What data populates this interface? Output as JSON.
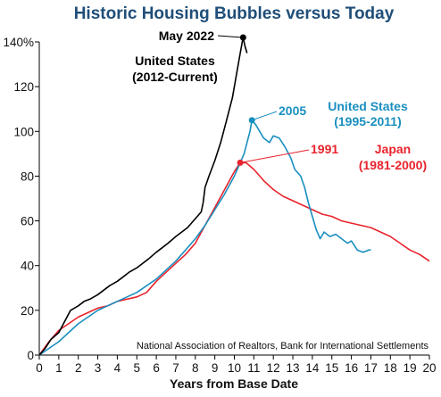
{
  "chart_data": {
    "type": "line",
    "title": "Historic Housing Bubbles versus Today",
    "xlabel": "Years from Base Date",
    "ylabel": "",
    "xlim": [
      0,
      20
    ],
    "ylim": [
      0,
      140
    ],
    "x_ticks": [
      "0",
      "1",
      "2",
      "3",
      "4",
      "5",
      "6",
      "7",
      "8",
      "9",
      "10",
      "11",
      "12",
      "13",
      "14",
      "15",
      "16",
      "17",
      "18",
      "19",
      "20"
    ],
    "y_ticks": [
      "0",
      "20",
      "40",
      "60",
      "80",
      "100",
      "120",
      "140%"
    ],
    "source": "National Association of Realtors, Bank for International Settlements",
    "series": [
      {
        "name": "United States (2012-Current)",
        "color": "#000000",
        "points": [
          [
            0,
            0
          ],
          [
            0.3,
            3
          ],
          [
            0.6,
            7
          ],
          [
            1,
            10
          ],
          [
            1.3,
            15
          ],
          [
            1.6,
            20
          ],
          [
            2,
            22
          ],
          [
            2.3,
            24
          ],
          [
            2.6,
            25
          ],
          [
            3,
            27
          ],
          [
            3.3,
            29
          ],
          [
            3.6,
            31
          ],
          [
            4,
            33
          ],
          [
            4.3,
            35
          ],
          [
            4.6,
            37
          ],
          [
            5,
            39
          ],
          [
            5.3,
            41
          ],
          [
            5.6,
            43
          ],
          [
            6,
            46
          ],
          [
            6.3,
            48
          ],
          [
            6.6,
            50
          ],
          [
            7,
            53
          ],
          [
            7.3,
            55
          ],
          [
            7.6,
            57
          ],
          [
            7.9,
            60
          ],
          [
            8.1,
            62
          ],
          [
            8.3,
            64
          ],
          [
            8.4,
            68
          ],
          [
            8.5,
            75
          ],
          [
            8.7,
            80
          ],
          [
            9,
            87
          ],
          [
            9.3,
            95
          ],
          [
            9.6,
            105
          ],
          [
            9.9,
            115
          ],
          [
            10.1,
            125
          ],
          [
            10.3,
            135
          ],
          [
            10.45,
            142
          ],
          [
            10.55,
            138
          ],
          [
            10.65,
            135
          ]
        ]
      },
      {
        "name": "United States (1995-2011)",
        "color": "#1a8fbf",
        "points": [
          [
            0,
            0
          ],
          [
            0.5,
            3
          ],
          [
            1,
            6
          ],
          [
            1.5,
            10
          ],
          [
            2,
            14
          ],
          [
            2.5,
            17
          ],
          [
            3,
            20
          ],
          [
            3.5,
            22
          ],
          [
            4,
            24
          ],
          [
            4.5,
            26
          ],
          [
            5,
            28
          ],
          [
            5.5,
            31
          ],
          [
            6,
            34
          ],
          [
            6.5,
            38
          ],
          [
            7,
            42
          ],
          [
            7.5,
            47
          ],
          [
            8,
            52
          ],
          [
            8.5,
            58
          ],
          [
            9,
            65
          ],
          [
            9.5,
            72
          ],
          [
            10,
            80
          ],
          [
            10.5,
            90
          ],
          [
            10.8,
            100
          ],
          [
            10.9,
            105
          ],
          [
            11.1,
            103
          ],
          [
            11.3,
            100
          ],
          [
            11.5,
            97
          ],
          [
            11.8,
            95
          ],
          [
            12,
            98
          ],
          [
            12.3,
            97
          ],
          [
            12.6,
            93
          ],
          [
            12.9,
            88
          ],
          [
            13.1,
            83
          ],
          [
            13.4,
            80
          ],
          [
            13.6,
            75
          ],
          [
            13.8,
            68
          ],
          [
            14,
            62
          ],
          [
            14.2,
            56
          ],
          [
            14.4,
            52
          ],
          [
            14.6,
            55
          ],
          [
            14.9,
            53
          ],
          [
            15.2,
            54
          ],
          [
            15.5,
            52
          ],
          [
            15.8,
            50
          ],
          [
            16,
            51
          ],
          [
            16.3,
            47
          ],
          [
            16.6,
            46
          ],
          [
            16.9,
            47
          ],
          [
            17,
            47
          ]
        ]
      },
      {
        "name": "Japan (1981-2000)",
        "color": "#e8232c",
        "points": [
          [
            0,
            0
          ],
          [
            0.5,
            6
          ],
          [
            1,
            11
          ],
          [
            1.5,
            14
          ],
          [
            2,
            17
          ],
          [
            2.5,
            19
          ],
          [
            3,
            21
          ],
          [
            3.5,
            22
          ],
          [
            4,
            24
          ],
          [
            4.5,
            25
          ],
          [
            5,
            26
          ],
          [
            5.5,
            28
          ],
          [
            6,
            33
          ],
          [
            6.5,
            37
          ],
          [
            7,
            41
          ],
          [
            7.5,
            45
          ],
          [
            8,
            50
          ],
          [
            8.5,
            58
          ],
          [
            9,
            66
          ],
          [
            9.5,
            74
          ],
          [
            10,
            82
          ],
          [
            10.3,
            86
          ],
          [
            10.6,
            86
          ],
          [
            11,
            83
          ],
          [
            11.5,
            78
          ],
          [
            12,
            74
          ],
          [
            12.5,
            71
          ],
          [
            13,
            69
          ],
          [
            13.5,
            67
          ],
          [
            14,
            65
          ],
          [
            14.5,
            63
          ],
          [
            15,
            62
          ],
          [
            15.5,
            60
          ],
          [
            16,
            59
          ],
          [
            16.5,
            58
          ],
          [
            17,
            57
          ],
          [
            17.5,
            55
          ],
          [
            18,
            53
          ],
          [
            18.5,
            50
          ],
          [
            19,
            47
          ],
          [
            19.5,
            45
          ],
          [
            20,
            42
          ]
        ]
      }
    ],
    "annotations": [
      {
        "label": "May 2022",
        "x": 10.45,
        "y": 142,
        "color": "#000000"
      },
      {
        "label": "2005",
        "x": 10.9,
        "y": 105,
        "color": "#1a8fbf"
      },
      {
        "label": "1991",
        "x": 10.3,
        "y": 86,
        "color": "#e8232c"
      }
    ],
    "series_labels": [
      {
        "lines": [
          "United States",
          "(2012-Current)"
        ],
        "color": "#000000"
      },
      {
        "lines": [
          "United States",
          "(1995-2011)"
        ],
        "color": "#1a8fbf"
      },
      {
        "lines": [
          "Japan",
          "(1981-2000)"
        ],
        "color": "#e8232c"
      }
    ]
  }
}
